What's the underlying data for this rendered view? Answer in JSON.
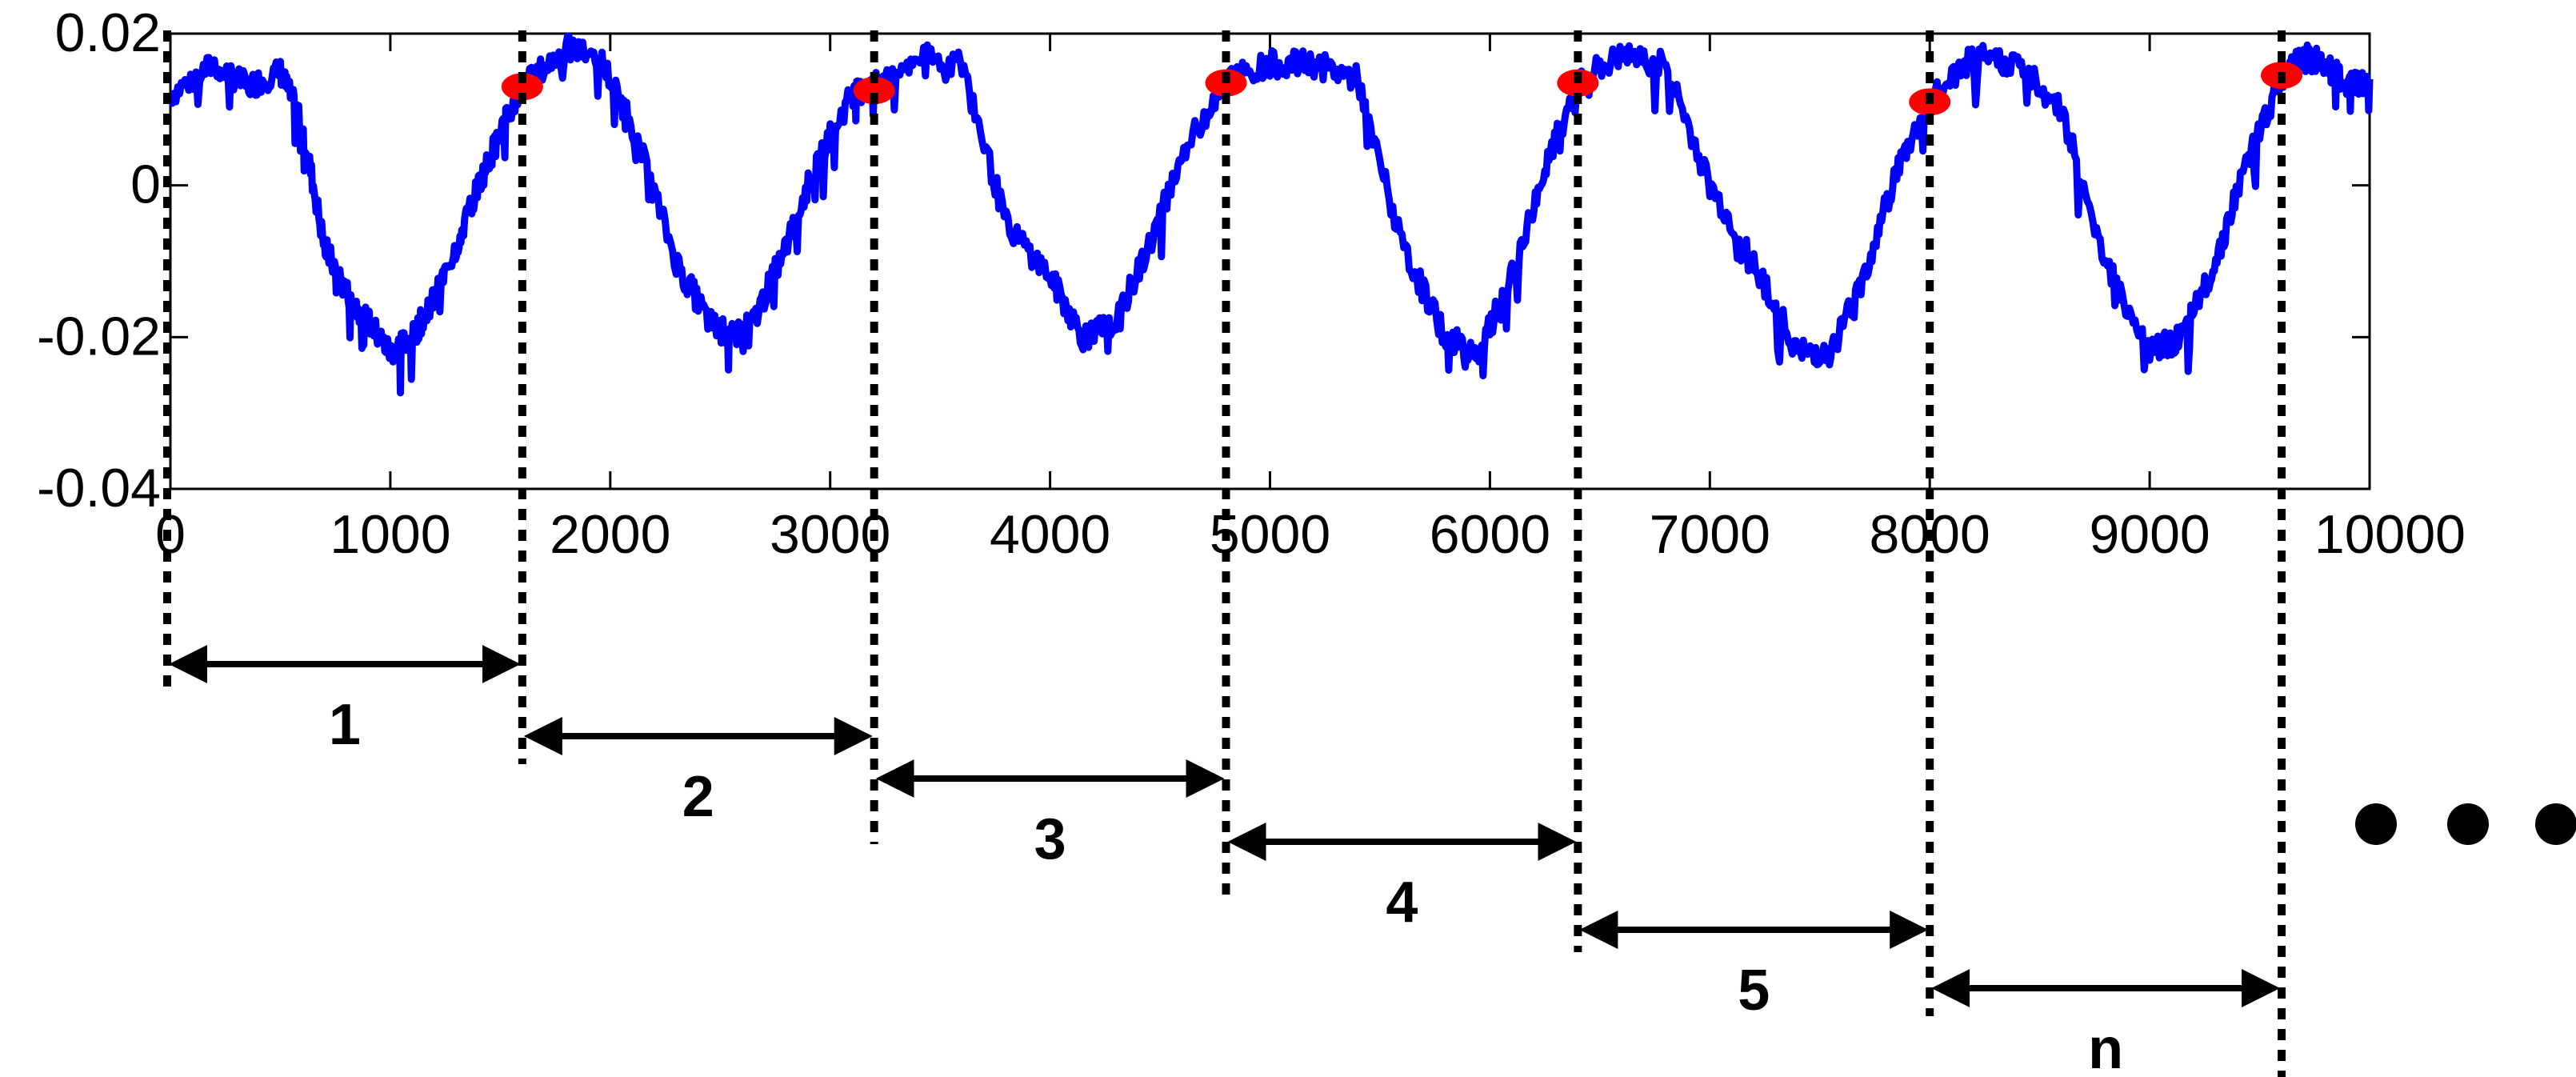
{
  "chart_data": {
    "type": "line",
    "title": "",
    "xlabel": "",
    "ylabel": "",
    "xlim": [
      0,
      10000
    ],
    "ylim": [
      -0.04,
      0.02
    ],
    "x_ticks": [
      0,
      1000,
      2000,
      3000,
      4000,
      5000,
      6000,
      7000,
      8000,
      9000,
      10000
    ],
    "x_tick_labels": [
      "0",
      "1000",
      "2000",
      "3000",
      "4000",
      "5000",
      "6000",
      "7000",
      "8000",
      "9000",
      "10000"
    ],
    "y_ticks": [
      0.02,
      0,
      -0.02,
      -0.04
    ],
    "y_tick_labels": [
      "0.02",
      "0",
      "-0.02",
      "-0.04"
    ],
    "grid": false,
    "series": [
      {
        "color": "#0000ff",
        "x": [
          0,
          200,
          350,
          500,
          600,
          700,
          800,
          900,
          1000,
          1100,
          1200,
          1300,
          1400,
          1500,
          1600,
          1800,
          1950,
          2100,
          2300,
          2450,
          2550,
          2650,
          2800,
          2950,
          3100,
          3200,
          3400,
          3600,
          3800,
          4000,
          4150,
          4300,
          4450,
          4600,
          4800,
          5000,
          5200,
          5400,
          5600,
          5800,
          5950,
          6100,
          6250,
          6400,
          6600,
          6800,
          7000,
          7200,
          7400,
          7550,
          7700,
          7850,
          8000,
          8200,
          8400,
          8600,
          8800,
          9000,
          9150,
          9300,
          9450,
          9600,
          9700,
          9800,
          9900,
          10000
        ],
        "y": [
          0.012,
          0.016,
          0.013,
          0.015,
          0.008,
          -0.008,
          -0.014,
          -0.018,
          -0.022,
          -0.02,
          -0.015,
          -0.008,
          0.0,
          0.007,
          0.013,
          0.018,
          0.017,
          0.008,
          -0.01,
          -0.018,
          -0.02,
          -0.018,
          -0.008,
          0.004,
          0.012,
          0.013,
          0.017,
          0.016,
          -0.005,
          -0.012,
          -0.02,
          -0.018,
          -0.008,
          0.004,
          0.014,
          0.016,
          0.016,
          0.014,
          -0.008,
          -0.02,
          -0.022,
          -0.012,
          0.002,
          0.014,
          0.017,
          0.016,
          0.0,
          -0.01,
          -0.022,
          -0.022,
          -0.012,
          0.002,
          0.011,
          0.017,
          0.016,
          0.01,
          -0.01,
          -0.022,
          -0.02,
          -0.01,
          0.004,
          0.014,
          0.017,
          0.016,
          0.013,
          0.014
        ]
      }
    ],
    "markers": {
      "color": "#ff0000",
      "x": [
        1600,
        3200,
        4800,
        6400,
        8000,
        9600
      ],
      "y": [
        0.013,
        0.0125,
        0.0135,
        0.0135,
        0.011,
        0.0145
      ]
    },
    "segment_boundaries": [
      0,
      1600,
      3200,
      4800,
      6400,
      8000,
      9600
    ],
    "segment_labels": [
      "1",
      "2",
      "3",
      "4",
      "5",
      "n"
    ],
    "continuation_mark": "●●●"
  }
}
